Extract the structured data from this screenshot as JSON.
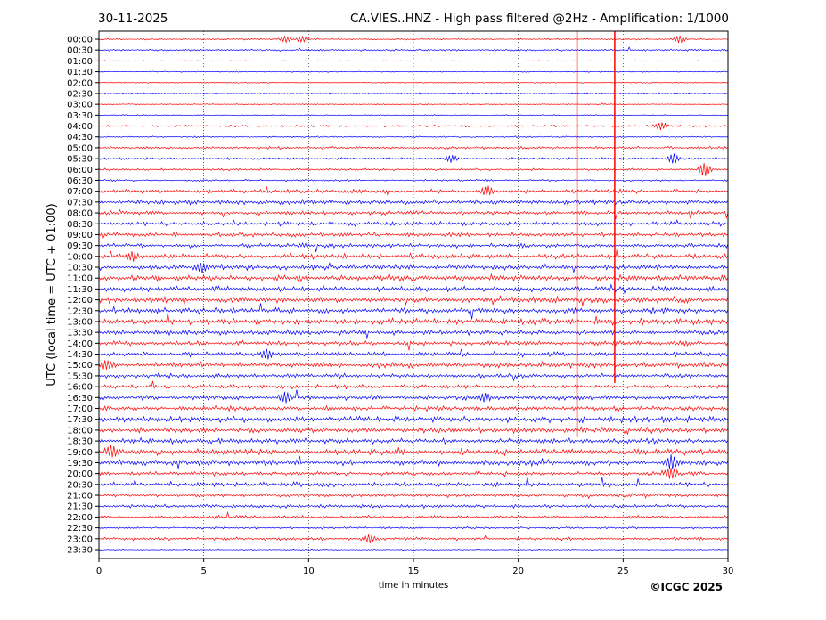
{
  "chart_data": {
    "type": "line",
    "title_left": "30-11-2025",
    "title_right": "CA.VIES..HNZ - High pass filtered @2Hz - Amplification: 1/1000",
    "xlabel": "time in minutes",
    "ylabel": "UTC (local time = UTC + 01:00)",
    "xlim": [
      0,
      30
    ],
    "xticks": [
      "0",
      "5",
      "10",
      "15",
      "20",
      "25",
      "30"
    ],
    "grid": "vertical dotted at 5-minute ticks",
    "series_colors": [
      "#ff0000",
      "#0000ff"
    ],
    "rows": [
      "00:00",
      "00:30",
      "01:00",
      "01:30",
      "02:00",
      "02:30",
      "03:00",
      "03:30",
      "04:00",
      "04:30",
      "05:00",
      "05:30",
      "06:00",
      "06:30",
      "07:00",
      "07:30",
      "08:00",
      "08:30",
      "09:00",
      "09:30",
      "10:00",
      "10:30",
      "11:00",
      "11:30",
      "12:00",
      "12:30",
      "13:00",
      "13:30",
      "14:00",
      "14:30",
      "15:00",
      "15:30",
      "16:00",
      "16:30",
      "17:00",
      "17:30",
      "18:00",
      "18:30",
      "19:00",
      "19:30",
      "20:00",
      "20:30",
      "21:00",
      "21:30",
      "22:00",
      "22:30",
      "23:00",
      "23:30"
    ],
    "noise_level": [
      0.2,
      0.25,
      0.1,
      0.15,
      0.15,
      0.2,
      0.15,
      0.15,
      0.25,
      0.2,
      0.35,
      0.3,
      0.3,
      0.25,
      0.5,
      0.6,
      0.5,
      0.55,
      0.55,
      0.55,
      0.7,
      0.7,
      0.75,
      0.7,
      0.8,
      0.75,
      0.8,
      0.65,
      0.6,
      0.6,
      0.7,
      0.55,
      0.55,
      0.6,
      0.6,
      0.8,
      0.7,
      0.7,
      0.8,
      0.7,
      0.5,
      0.6,
      0.45,
      0.45,
      0.4,
      0.3,
      0.4,
      0.15
    ],
    "events": [
      {
        "row": 0,
        "minute": 8.9,
        "amp": 3
      },
      {
        "row": 0,
        "minute": 9.7,
        "amp": 3
      },
      {
        "row": 0,
        "minute": 27.7,
        "amp": 4
      },
      {
        "row": 8,
        "minute": 26.8,
        "amp": 4
      },
      {
        "row": 11,
        "minute": 16.8,
        "amp": 4
      },
      {
        "row": 11,
        "minute": 27.4,
        "amp": 5
      },
      {
        "row": 12,
        "minute": 28.9,
        "amp": 8
      },
      {
        "row": 14,
        "minute": 18.5,
        "amp": 5
      },
      {
        "row": 20,
        "minute": 1.6,
        "amp": 5
      },
      {
        "row": 21,
        "minute": 4.9,
        "amp": 5
      },
      {
        "row": 29,
        "minute": 8.0,
        "amp": 5
      },
      {
        "row": 30,
        "minute": 0.4,
        "amp": 5
      },
      {
        "row": 33,
        "minute": 18.4,
        "amp": 5
      },
      {
        "row": 33,
        "minute": 8.9,
        "amp": 6
      },
      {
        "row": 38,
        "minute": 0.6,
        "amp": 5
      },
      {
        "row": 39,
        "minute": 27.3,
        "amp": 8
      },
      {
        "row": 40,
        "minute": 27.3,
        "amp": 6
      },
      {
        "row": 46,
        "minute": 12.9,
        "amp": 4
      }
    ],
    "spikes": [
      {
        "minute": 22.8,
        "from_row": 0,
        "to_row": 36
      },
      {
        "minute": 24.6,
        "from_row": 0,
        "to_row": 31
      }
    ]
  },
  "footer": {
    "copyright": "©ICGC 2025"
  }
}
